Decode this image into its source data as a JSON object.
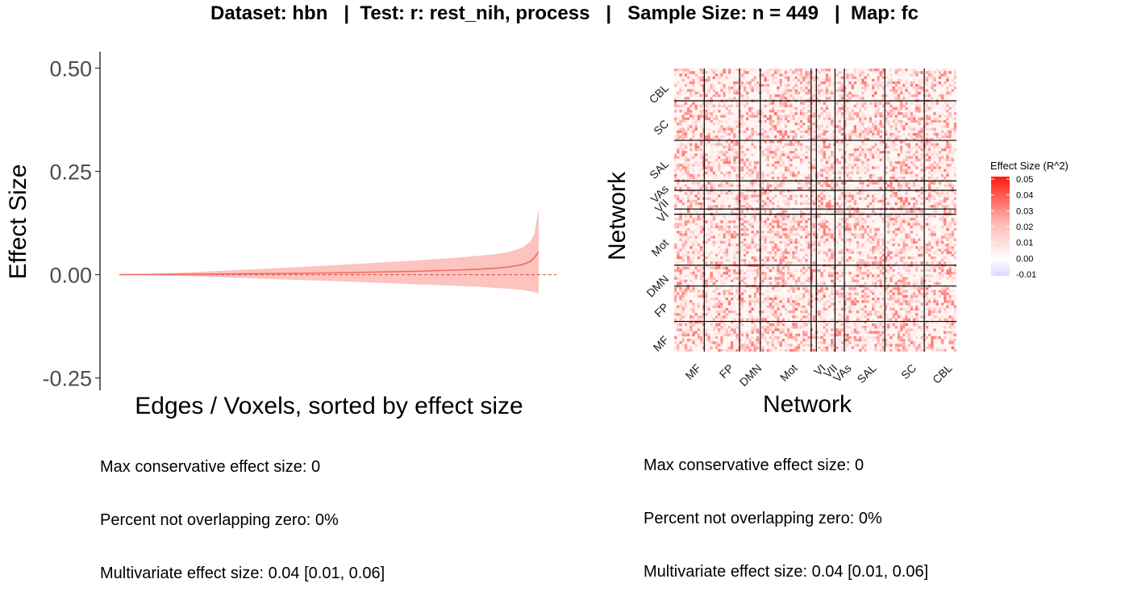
{
  "title": "Dataset: hbn   |  Test: r: rest_nih, process   |   Sample Size: n = 449   |  Map: fc",
  "colors": {
    "ribbon": "#fcc3bf",
    "line": "#f06c62",
    "zero_line": "#e0453c",
    "axis": "#000000",
    "tick_label": "#4d4d4d",
    "gradient_high": "#ff1a0d",
    "gradient_mid": "#ffffff",
    "gradient_low": "#ddd6ff"
  },
  "left_panel": {
    "stats": [
      "Max conservative effect size: 0",
      "Percent not overlapping zero: 0%",
      "Multivariate effect size: 0.04 [0.01, 0.06]"
    ]
  },
  "right_panel": {
    "stats": [
      "Max conservative effect size: 0",
      "Percent not overlapping zero: 0%",
      "Multivariate effect size: 0.04 [0.01, 0.06]"
    ]
  },
  "chart_data": [
    {
      "type": "line",
      "xlabel": "Edges / Voxels, sorted by effect size",
      "ylabel": "Effect Size",
      "ylim": [
        -0.28,
        0.54
      ],
      "y_ticks": [
        0.5,
        0.25,
        0.0,
        -0.25
      ],
      "y_tick_labels": [
        "0.50",
        "0.25",
        "0.00",
        "-0.25"
      ],
      "x_ticks_shown": false,
      "reference_line_y": 0,
      "series": [
        {
          "x": [
            0,
            0.1,
            0.2,
            0.3,
            0.4,
            0.5,
            0.6,
            0.7,
            0.8,
            0.85,
            0.9,
            0.93,
            0.96,
            0.98,
            0.99,
            1.0
          ],
          "y": [
            0.0,
            0.0005,
            0.001,
            0.002,
            0.003,
            0.004,
            0.006,
            0.008,
            0.011,
            0.013,
            0.016,
            0.019,
            0.024,
            0.032,
            0.042,
            0.055
          ],
          "ci_lower": [
            0.0,
            -0.002,
            -0.005,
            -0.008,
            -0.012,
            -0.015,
            -0.019,
            -0.023,
            -0.027,
            -0.029,
            -0.032,
            -0.034,
            -0.037,
            -0.04,
            -0.042,
            -0.045
          ],
          "ci_upper": [
            0.0,
            0.003,
            0.007,
            0.012,
            0.017,
            0.022,
            0.028,
            0.034,
            0.041,
            0.045,
            0.05,
            0.055,
            0.065,
            0.08,
            0.1,
            0.16
          ]
        }
      ],
      "grid": false
    },
    {
      "type": "heatmap",
      "xlabel": "Network",
      "ylabel": "Network",
      "x_networks": [
        "MF",
        "FP",
        "DMN",
        "Mot",
        "VI",
        "VII",
        "VAs",
        "SAL",
        "SC",
        "CBL"
      ],
      "y_networks_top_to_bottom": [
        "CBL",
        "SC",
        "SAL",
        "VAs",
        "VII",
        "VI",
        "Mot",
        "DMN",
        "FP",
        "MF"
      ],
      "network_relative_sizes": [
        29,
        34,
        20,
        49,
        5,
        18,
        9,
        39,
        38,
        31
      ],
      "legend_title": "Effect Size (R^2)",
      "legend_ticks": [
        "0.05",
        "0.04",
        "0.03",
        "0.02",
        "0.01",
        "0.00",
        "-0.01"
      ],
      "legend_values": [
        0.05,
        0.04,
        0.03,
        0.02,
        0.01,
        0.0,
        -0.01
      ],
      "value_range": [
        -0.01,
        0.05
      ],
      "grid": false
    }
  ]
}
